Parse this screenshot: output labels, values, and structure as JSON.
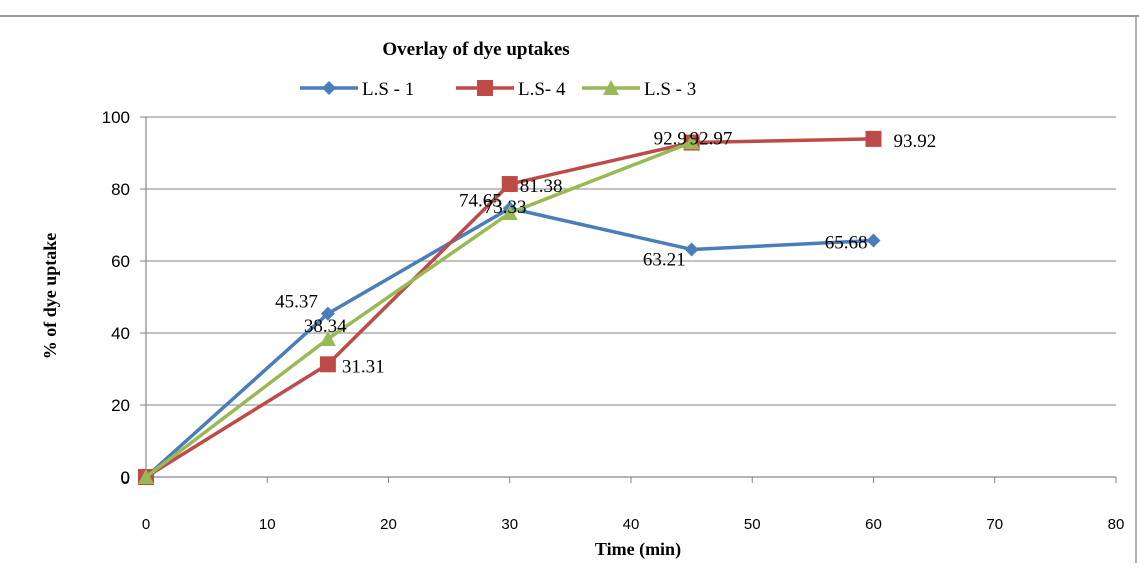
{
  "chart_data": {
    "type": "line",
    "title": "Overlay of dye uptakes",
    "xlabel": "Time (min)",
    "ylabel": "% of dye uptake",
    "xlim": [
      0,
      80
    ],
    "ylim": [
      0,
      100
    ],
    "x_ticks": [
      "0",
      "10",
      "20",
      "30",
      "40",
      "50",
      "60",
      "70",
      "80"
    ],
    "y_ticks": [
      "0",
      "20",
      "40",
      "60",
      "80",
      "100"
    ],
    "grid": "horizontal",
    "legend_position": "top",
    "series": [
      {
        "name": "L.S - 1",
        "color": "#4a7ebb",
        "marker": "diamond",
        "x": [
          0,
          15,
          30,
          45,
          60
        ],
        "y": [
          0,
          45.37,
          74.65,
          63.21,
          65.68
        ],
        "labels": [
          "0",
          "45.37",
          "74.65",
          "63.21",
          "65.68"
        ]
      },
      {
        "name": "L.S- 4",
        "color": "#be4b48",
        "marker": "square",
        "x": [
          0,
          15,
          30,
          45,
          60
        ],
        "y": [
          0,
          31.31,
          81.38,
          92.9,
          93.92
        ],
        "labels": [
          "0",
          "31.31",
          "81.38",
          "92.9",
          "93.92"
        ]
      },
      {
        "name": "L.S - 3",
        "color": "#98b954",
        "marker": "triangle",
        "x": [
          0,
          15,
          30,
          45
        ],
        "y": [
          0,
          38.34,
          73.33,
          92.97
        ],
        "labels": [
          "0",
          "38.34",
          "73.33",
          "92.97"
        ]
      }
    ]
  }
}
